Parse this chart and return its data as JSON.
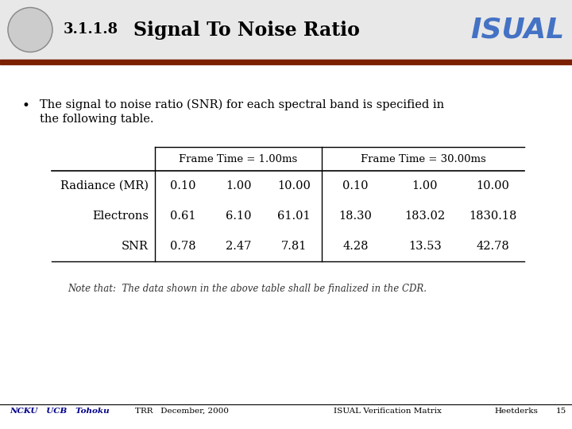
{
  "title": "Signal To Noise Ratio",
  "section_num": "3.1.1.8",
  "isual_text": "ISUAL",
  "bullet_line1": "The signal to noise ratio (SNR) for each spectral band is specified in",
  "bullet_line2": "the following table.",
  "col_header_1": "Frame Time = 1.00ms",
  "col_header_2": "Frame Time = 30.00ms",
  "row_labels": [
    "Radiance (MR)",
    "Electrons",
    "SNR"
  ],
  "table_data": [
    [
      "0.10",
      "1.00",
      "10.00",
      "0.10",
      "1.00",
      "10.00"
    ],
    [
      "0.61",
      "6.10",
      "61.01",
      "18.30",
      "183.02",
      "1830.18"
    ],
    [
      "0.78",
      "2.47",
      "7.81",
      "4.28",
      "13.53",
      "42.78"
    ]
  ],
  "note_text": "Note that:  The data shown in the above table shall be finalized in the CDR.",
  "footer_left_italic": "NCKU   UCB   Tohoku",
  "footer_mid_left": "TRR   December, 2000",
  "footer_mid_right": "ISUAL Verification Matrix",
  "footer_right1": "Heetderks",
  "footer_right2": "15",
  "header_bar_color": "#7B2000",
  "header_bg_color": "#e8e8e8",
  "bg_color": "#ffffff",
  "isual_color": "#4472C4",
  "footer_italic_color": "#00008B"
}
